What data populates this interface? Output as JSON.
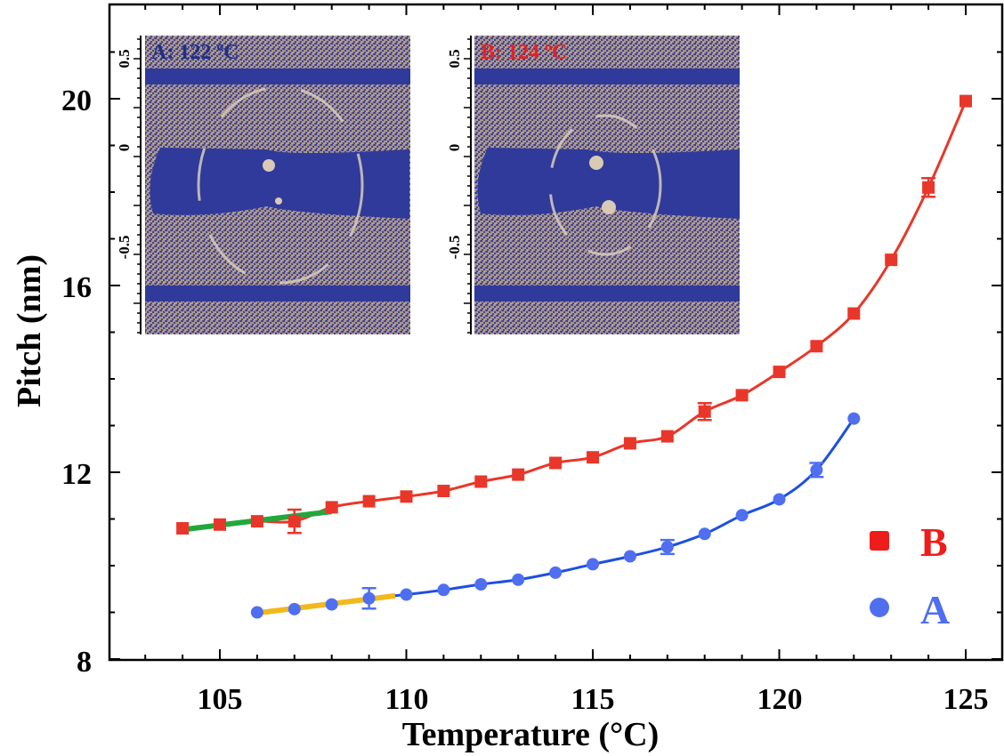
{
  "chart_data": {
    "type": "scatter",
    "xlabel": "Temperature (°C)",
    "ylabel": "Pitch (nm)",
    "xlim": [
      102,
      126
    ],
    "ylim": [
      8,
      22
    ],
    "x_ticks": [
      105,
      110,
      115,
      120,
      125
    ],
    "y_ticks": [
      8,
      12,
      16,
      20
    ],
    "x_tick_labels": [
      "105",
      "110",
      "115",
      "120",
      "125"
    ],
    "y_tick_labels": [
      "8",
      "12",
      "16",
      "20"
    ],
    "legend_position": "bottom-right",
    "series": [
      {
        "name": "B",
        "marker": "square",
        "color": "#e8372a",
        "x": [
          104,
          105,
          106,
          107,
          108,
          109,
          110,
          111,
          112,
          113,
          114,
          115,
          116,
          117,
          118,
          119,
          120,
          121,
          122,
          123,
          124,
          125
        ],
        "y": [
          10.8,
          10.88,
          10.95,
          10.95,
          11.25,
          11.38,
          11.48,
          11.6,
          11.8,
          11.95,
          12.2,
          12.32,
          12.62,
          12.77,
          13.3,
          13.65,
          14.15,
          14.7,
          15.4,
          16.55,
          18.1,
          19.95
        ],
        "error": [
          0,
          0,
          0,
          0.25,
          0,
          0,
          0,
          0,
          0,
          0,
          0,
          0,
          0,
          0,
          0.18,
          0,
          0,
          0,
          0,
          0,
          0.2,
          0
        ]
      },
      {
        "name": "A",
        "marker": "circle",
        "color": "#4f6ff0",
        "x": [
          106,
          107,
          108,
          109,
          110,
          111,
          112,
          113,
          114,
          115,
          116,
          117,
          118,
          119,
          120,
          121,
          122
        ],
        "y": [
          9.0,
          9.07,
          9.17,
          9.3,
          9.38,
          9.48,
          9.6,
          9.7,
          9.85,
          10.03,
          10.2,
          10.4,
          10.68,
          11.08,
          11.42,
          12.05,
          13.15
        ],
        "error": [
          0,
          0,
          0,
          0.22,
          0,
          0,
          0,
          0,
          0,
          0,
          0,
          0.15,
          0,
          0,
          0,
          0.15,
          0
        ]
      }
    ],
    "fits": [
      {
        "series": "B",
        "kind": "curve",
        "color": "#e8372a",
        "x_range": [
          104,
          125
        ]
      },
      {
        "series": "B",
        "kind": "linear",
        "color": "#22a83a",
        "x_range": [
          104,
          108
        ]
      },
      {
        "series": "A",
        "kind": "curve",
        "color": "#1d50e0",
        "x_range": [
          106,
          122
        ]
      },
      {
        "series": "A",
        "kind": "linear",
        "color": "#f2b91c",
        "x_range": [
          106,
          109.7
        ]
      }
    ],
    "insets": [
      {
        "label": "A: 122 ºC",
        "label_color": "#1e2f86",
        "y_ticks": [
          "0.5",
          "0",
          "-0.5"
        ],
        "ring": "large"
      },
      {
        "label": "B: 124 ºC",
        "label_color": "#e82020",
        "y_ticks": [
          "0.5",
          "0",
          "-0.5"
        ],
        "ring": "small"
      }
    ]
  }
}
